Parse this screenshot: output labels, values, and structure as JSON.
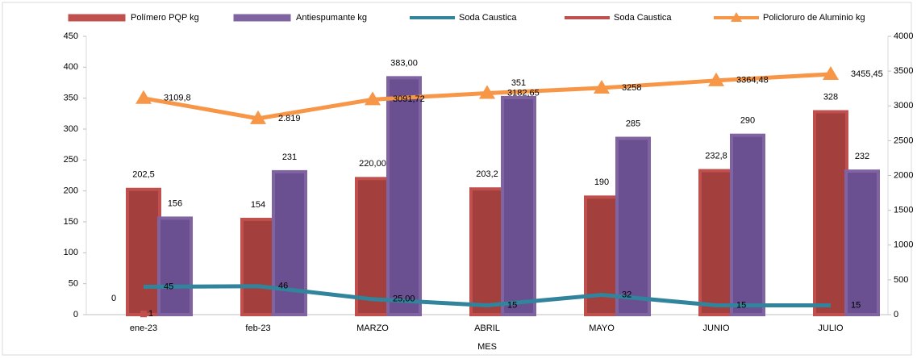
{
  "chart_data": {
    "type": "bar",
    "categories": [
      "ene-23",
      "feb-23",
      "MARZO",
      "ABRIL",
      "MAYO",
      "JUNIO",
      "JULIO"
    ],
    "xlabel": "MES",
    "series": [
      {
        "name": "Polímero PQP kg",
        "type": "bar",
        "color": "#c0504d",
        "values": [
          202.5,
          154,
          220,
          203.2,
          190,
          232.8,
          328
        ],
        "value_labels": [
          "202,5",
          "154",
          "220,00",
          "203,2",
          "190",
          "232,8",
          "328"
        ]
      },
      {
        "name": "Antiespumante kg",
        "type": "bar",
        "color": "#8064a2",
        "values": [
          156,
          231,
          383,
          351,
          285,
          290,
          232
        ],
        "value_labels": [
          "156",
          "231",
          "383,00",
          "351",
          "285",
          "290",
          "232"
        ]
      },
      {
        "name": "Soda Caustica",
        "type": "line",
        "color": "#31849b",
        "values": [
          45,
          46,
          25,
          15,
          32,
          15,
          15
        ],
        "value_labels": [
          "45",
          "46",
          "25,00",
          "15",
          "32",
          "15",
          "15"
        ]
      },
      {
        "name": "Soda Caustica",
        "type": "line",
        "color": "#c0504d",
        "values": [
          1,
          null,
          null,
          null,
          null,
          null,
          null
        ],
        "value_labels": [
          "1",
          null,
          null,
          null,
          null,
          null,
          null
        ]
      },
      {
        "name": "Policloruro de Aluminio kg",
        "type": "line",
        "axis": "y2",
        "marker": "triangle",
        "color": "#f79646",
        "values": [
          3109.8,
          2819,
          3091.72,
          3182.65,
          3258,
          3364.48,
          3455.45
        ],
        "value_labels": [
          "3109,8",
          "2.819",
          "3091,72",
          "3182,65",
          "3258",
          "3364,48",
          "3455,45"
        ]
      }
    ],
    "annotations": [
      "0"
    ],
    "ylim": [
      0,
      450
    ],
    "yticks": [
      0,
      50,
      100,
      150,
      200,
      250,
      300,
      350,
      400,
      450
    ],
    "y2lim": [
      0,
      4000
    ],
    "y2ticks": [
      0,
      500,
      1000,
      1500,
      2000,
      2500,
      3000,
      3500,
      4000
    ],
    "legend": "top"
  }
}
